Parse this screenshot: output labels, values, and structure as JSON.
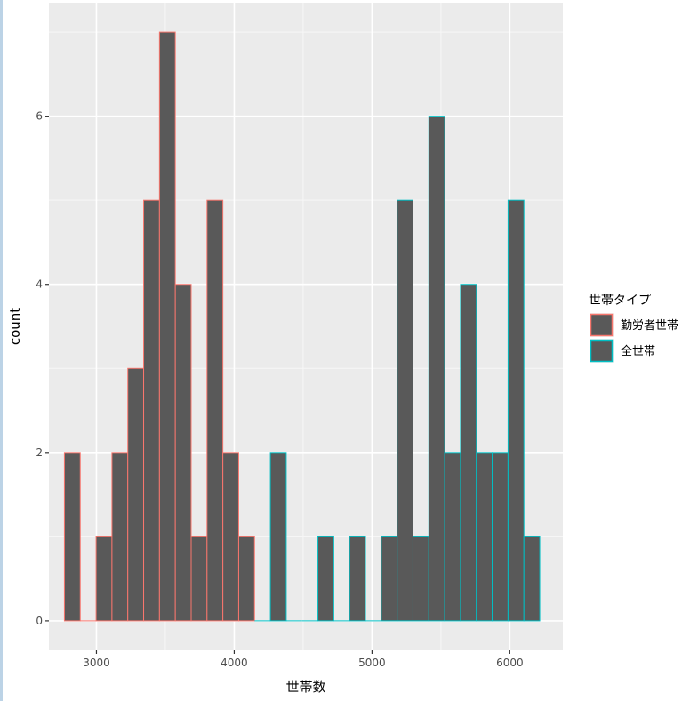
{
  "chart_data": {
    "type": "bar",
    "title": "",
    "xlabel": "世帯数",
    "ylabel": "count",
    "xlim": [
      2655,
      6385
    ],
    "ylim": [
      -0.35,
      7.35
    ],
    "x_ticks": [
      3000,
      4000,
      5000,
      6000
    ],
    "y_ticks": [
      0,
      2,
      4,
      6
    ],
    "x_tick_labels": [
      "3000",
      "4000",
      "5000",
      "6000"
    ],
    "y_tick_labels": [
      "0",
      "2",
      "4",
      "6"
    ],
    "bin_width": 115,
    "grid": true,
    "legend": {
      "title": "世帯タイプ",
      "placement": "right"
    },
    "series": [
      {
        "name": "勤労者世帯",
        "color": "#F8766D",
        "fill": "#595959",
        "bin_centers": [
          2825,
          2940,
          3055,
          3170,
          3285,
          3400,
          3515,
          3630,
          3745,
          3860,
          3975,
          4090
        ],
        "values": [
          2,
          0,
          1,
          2,
          3,
          5,
          7,
          4,
          1,
          5,
          2,
          1
        ]
      },
      {
        "name": "全世帯",
        "color": "#00BFC4",
        "fill": "#595959",
        "bin_centers": [
          4205,
          4320,
          4435,
          4550,
          4665,
          4780,
          4895,
          5010,
          5125,
          5240,
          5355,
          5470,
          5585,
          5700,
          5815,
          5930,
          6045,
          6160
        ],
        "values": [
          0,
          2,
          0,
          0,
          1,
          0,
          1,
          0,
          1,
          5,
          1,
          6,
          2,
          4,
          2,
          2,
          5,
          1
        ]
      }
    ]
  }
}
